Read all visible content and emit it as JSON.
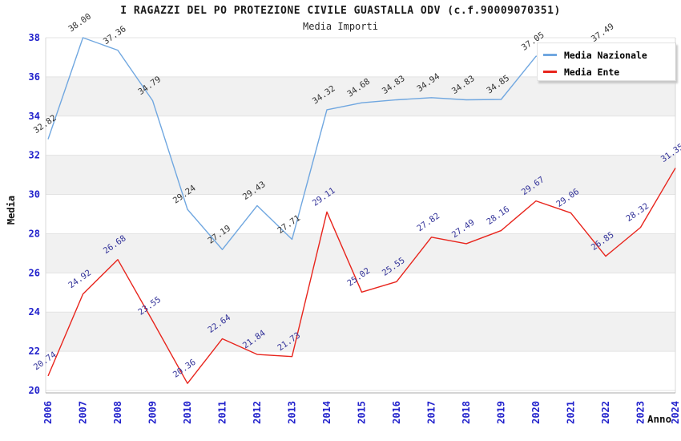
{
  "header": {
    "title": "I RAGAZZI DEL PO PROTEZIONE CIVILE GUASTALLA ODV (c.f.90009070351)",
    "subtitle": "Media Importi"
  },
  "chart_data": {
    "type": "line",
    "title": "I RAGAZZI DEL PO PROTEZIONE CIVILE GUASTALLA ODV (c.f.90009070351)",
    "subtitle": "Media Importi",
    "xlabel": "Anno",
    "ylabel": "Media",
    "x": [
      2006,
      2007,
      2008,
      2009,
      2010,
      2011,
      2012,
      2013,
      2014,
      2015,
      2016,
      2017,
      2018,
      2019,
      2020,
      2021,
      2022,
      2023,
      2024
    ],
    "ylim": [
      20,
      38
    ],
    "yticks": [
      20,
      22,
      24,
      26,
      28,
      30,
      32,
      34,
      36,
      38
    ],
    "grid": "horizontal",
    "legend_position": "top-right",
    "band_colors": [
      "#ffffff",
      "#f1f1f1"
    ],
    "gridline_color": "#e3e3e3",
    "axis_line_color": "#a8a8a8",
    "tick_label_color": "#2222cc",
    "series": [
      {
        "name": "Media Nazionale",
        "color": "#70a7e0",
        "label_color": "#333333",
        "values": [
          32.82,
          38.0,
          37.36,
          34.79,
          29.24,
          27.19,
          29.43,
          27.71,
          34.32,
          34.68,
          34.83,
          34.94,
          34.83,
          34.85,
          37.05,
          null,
          37.49,
          null,
          null
        ]
      },
      {
        "name": "Media Ente",
        "color": "#e8251d",
        "label_color": "#333399",
        "values": [
          20.74,
          24.92,
          26.68,
          23.55,
          20.36,
          22.64,
          21.84,
          21.73,
          29.11,
          25.02,
          25.55,
          27.82,
          27.49,
          28.16,
          29.67,
          29.06,
          26.85,
          28.32,
          31.35
        ]
      }
    ]
  }
}
